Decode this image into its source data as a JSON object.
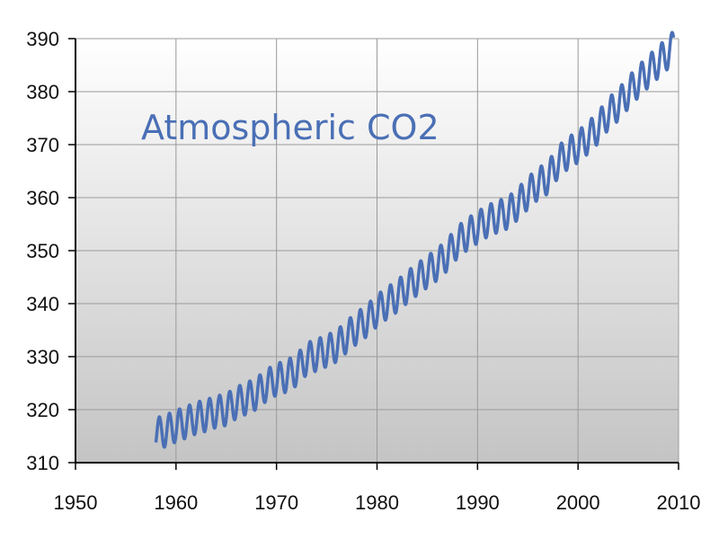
{
  "chart_data": {
    "type": "line",
    "title": "Atmospheric CO2",
    "xlabel": "",
    "ylabel": "",
    "xlim": [
      1950,
      2010
    ],
    "ylim": [
      310,
      390
    ],
    "x_ticks": [
      "1950",
      "1960",
      "1970",
      "1980",
      "1990",
      "2000",
      "2010"
    ],
    "y_ticks": [
      "310",
      "320",
      "330",
      "340",
      "350",
      "360",
      "370",
      "380",
      "390"
    ],
    "grid": true,
    "legend": "none",
    "series": [
      {
        "x": [
          1958.0,
          1958.5,
          1959.0,
          1960.0,
          1961.0,
          1962.0,
          1963.0,
          1964.0,
          1965.0,
          1966.0,
          1967.0,
          1968.0,
          1969.0,
          1970.0,
          1971.0,
          1972.0,
          1973.0,
          1974.0,
          1975.0,
          1976.0,
          1977.0,
          1978.0,
          1979.0,
          1980.0,
          1981.0,
          1982.0,
          1983.0,
          1984.0,
          1985.0,
          1986.0,
          1987.0,
          1988.0,
          1989.0,
          1990.0,
          1991.0,
          1992.0,
          1993.0,
          1994.0,
          1995.0,
          1996.0,
          1997.0,
          1998.0,
          1999.0,
          2000.0,
          2001.0,
          2002.0,
          2003.0,
          2004.0,
          2005.0,
          2006.0,
          2007.0,
          2008.0,
          2009.0,
          2009.5
        ],
        "values": [
          315.5,
          315.7,
          316.0,
          316.9,
          317.6,
          318.4,
          318.9,
          319.6,
          320.0,
          321.3,
          322.1,
          323.0,
          324.6,
          325.7,
          326.3,
          327.5,
          329.6,
          330.3,
          331.1,
          332.0,
          333.8,
          335.4,
          336.8,
          338.7,
          340.1,
          341.4,
          343.1,
          344.6,
          346.0,
          347.4,
          349.2,
          351.6,
          353.1,
          354.4,
          355.6,
          356.4,
          357.1,
          358.8,
          360.8,
          362.6,
          363.7,
          366.7,
          368.4,
          369.6,
          371.3,
          373.2,
          375.8,
          377.5,
          379.8,
          381.9,
          383.8,
          385.6,
          387.4,
          388.5
        ],
        "seasonal_amplitude": 3.0,
        "color": "#4a6fb5"
      }
    ],
    "colors": {
      "line": "#4a6fb5",
      "title": "#4a6fb5",
      "grid": "#9a9a9a",
      "axis": "#000000",
      "plot_bg_top": "#ffffff",
      "plot_bg_bottom": "#c4c4c4"
    }
  }
}
